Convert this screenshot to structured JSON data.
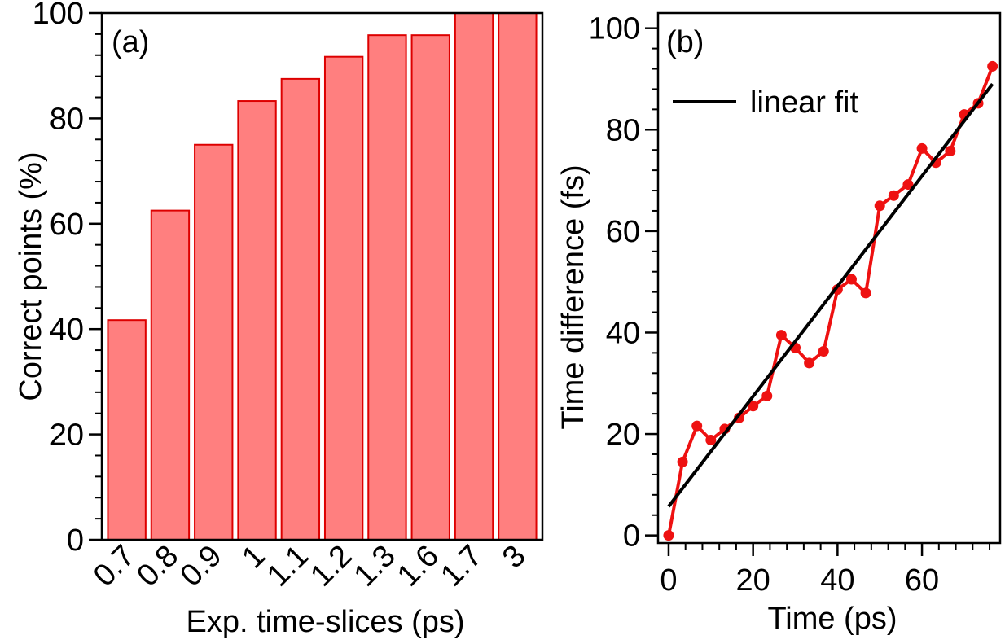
{
  "chart_data": [
    {
      "panel_label": "(a)",
      "type": "bar",
      "xlabel": "Exp. time-slices (ps)",
      "ylabel": "Correct points (%)",
      "ylim": [
        0,
        100
      ],
      "yticks": [
        "0",
        "20",
        "40",
        "60",
        "80",
        "100"
      ],
      "categories": [
        "0.7",
        "0.8",
        "0.9",
        "1",
        "1.1",
        "1.2",
        "1.3",
        "1.6",
        "1.7",
        "3"
      ],
      "values": [
        41.7,
        62.5,
        75.0,
        83.3,
        87.5,
        91.7,
        95.8,
        95.8,
        100,
        100
      ],
      "bar_color": "#ff7f7f",
      "bar_edge_color": "#dd0000",
      "grid": false
    },
    {
      "panel_label": "(b)",
      "type": "line",
      "xlabel": "Time (ps)",
      "ylabel": "Time difference (fs)",
      "xlim": [
        -2.5,
        78.5
      ],
      "ylim": [
        -1.5,
        103
      ],
      "xticks": [
        "0",
        "20",
        "40",
        "60"
      ],
      "yticks": [
        "0",
        "20",
        "40",
        "60",
        "80",
        "100"
      ],
      "series": [
        {
          "x": [
            0,
            3.3,
            6.7,
            10,
            13.3,
            16.7,
            20,
            23.3,
            26.7,
            30,
            33.3,
            36.7,
            40,
            43.3,
            46.7,
            50,
            53.3,
            56.7,
            60,
            63.3,
            66.7,
            70,
            73.3,
            76.7
          ],
          "y": [
            0,
            14.5,
            21.6,
            18.8,
            21.0,
            23.2,
            25.5,
            27.5,
            39.5,
            37.0,
            34.0,
            36.3,
            48.5,
            50.5,
            47.8,
            65.0,
            67.0,
            69.2,
            76.3,
            73.5,
            75.8,
            83.0,
            85.2,
            92.5
          ],
          "color": "#ee1111",
          "marker": "circle"
        },
        {
          "name": "linear fit",
          "x": [
            0,
            76.7
          ],
          "y": [
            5.7,
            89.0
          ],
          "color": "#000000",
          "marker": "none"
        }
      ],
      "legend_position": "top-left",
      "grid": false
    }
  ]
}
